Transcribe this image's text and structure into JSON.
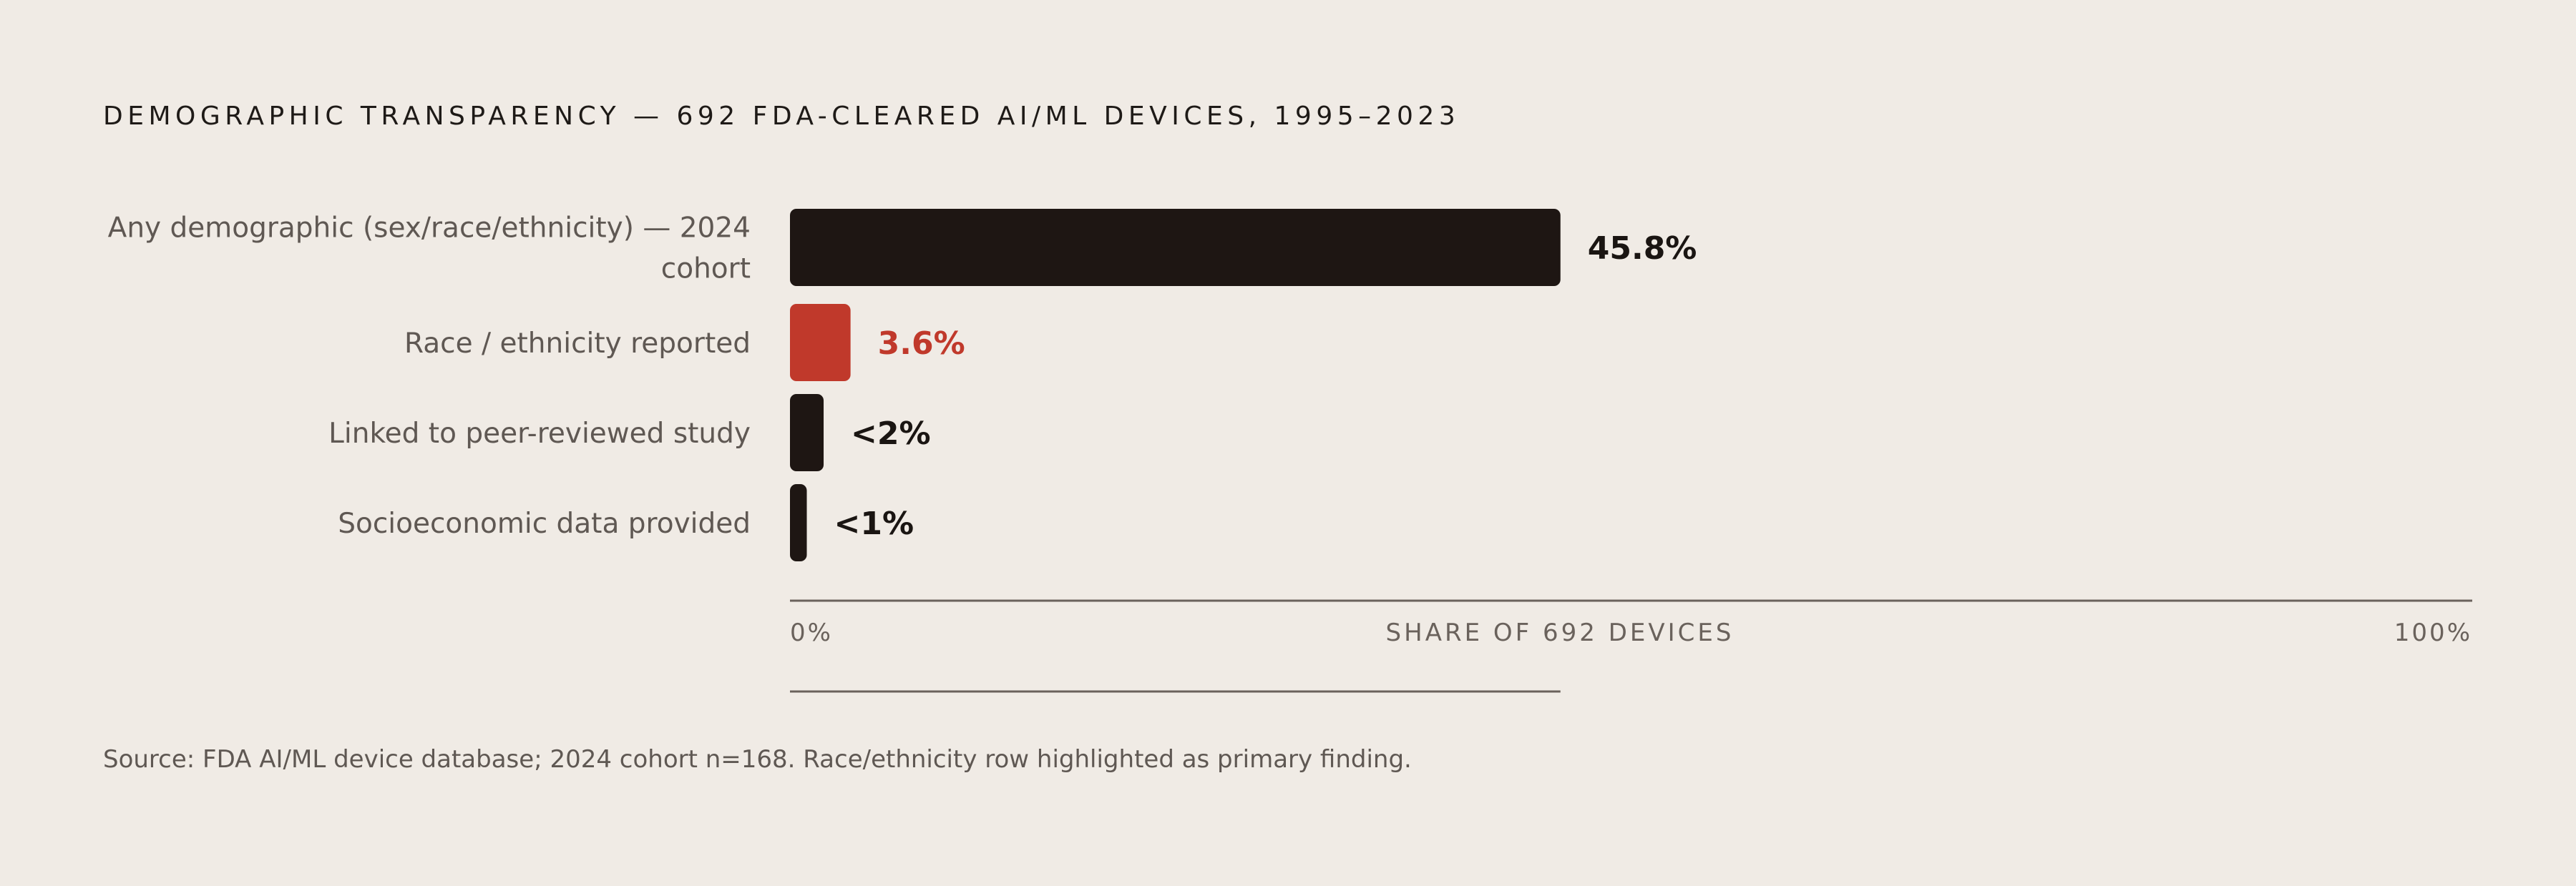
{
  "title": "DEMOGRAPHIC TRANSPARENCY — 692 FDA-CLEARED AI/ML DEVICES, 1995–2023",
  "source": "Source: FDA AI/ML device database; 2024 cohort n=168. Race/ethnicity row highlighted as primary finding.",
  "colors": {
    "background": "#f0ebe5",
    "bar": "#1e1613",
    "highlight": "#c0392b",
    "label": "#5f5853",
    "axis": "#6a625c"
  },
  "chart_data": {
    "type": "bar",
    "orientation": "horizontal",
    "title": "DEMOGRAPHIC TRANSPARENCY — 692 FDA-CLEARED AI/ML DEVICES, 1995–2023",
    "xlabel": "SHARE OF 692 DEVICES",
    "xlim": [
      0,
      100
    ],
    "tick_labels": [
      "0%",
      "100%"
    ],
    "grid": false,
    "categories": [
      [
        "Any demographic (sex/race/ethnicity) — 2024",
        "cohort"
      ],
      [
        "Race / ethnicity reported"
      ],
      [
        "Linked to peer-reviewed study"
      ],
      [
        "Socioeconomic data provided"
      ]
    ],
    "values": [
      45.8,
      3.6,
      2,
      1
    ],
    "value_labels": [
      "45.8%",
      "3.6%",
      "<2%",
      "<1%"
    ],
    "highlighted": [
      false,
      true,
      false,
      false
    ]
  }
}
